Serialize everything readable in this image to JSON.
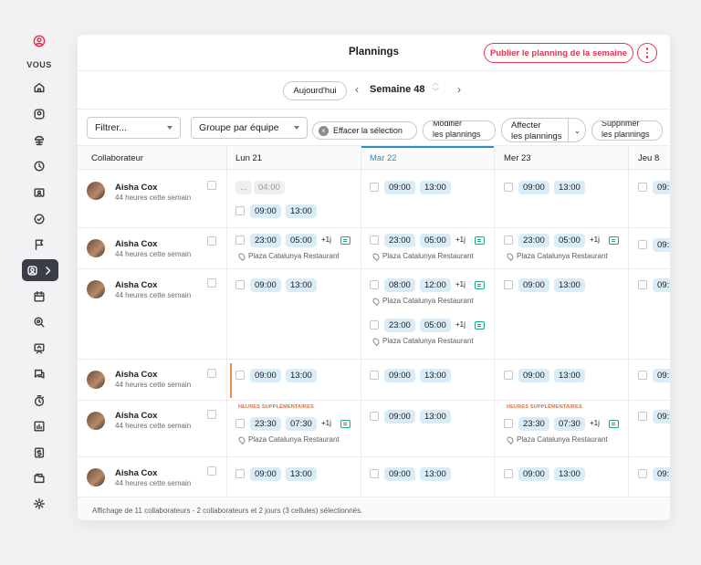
{
  "sidebar": {
    "vous_label": "VOUS",
    "items": [
      "home-icon",
      "smiley-icon",
      "beach-umbrella-icon",
      "clock-icon",
      "id-card-icon",
      "check-circle-icon",
      "flag-icon",
      "users-active-icon",
      "calendar-icon",
      "search-dollar-icon",
      "presentation-icon",
      "chat-icon",
      "stopwatch-icon",
      "chart-icon",
      "dollar-doc-icon",
      "folder-icon",
      "gear-icon"
    ]
  },
  "header": {
    "title": "Plannings",
    "publish_label": "Publier le planning de la semaine"
  },
  "week": {
    "today_label": "Aujourd'hui",
    "label": "Semaine 48"
  },
  "filters": {
    "filter_label": "Filtrer...",
    "group_label": "Groupe par équipe",
    "clear_label": "Effacer la sélection",
    "modify_label_1": "Modifier",
    "modify_label_2": "les plannings",
    "assign_label_1": "Affecter",
    "assign_label_2": "les plannings",
    "delete_label_1": "Supprimer",
    "delete_label_2": "les plannings"
  },
  "columns": [
    "Collaborateur",
    "Lun 21",
    "Mar 22",
    "Mer 23",
    "Jeu 8"
  ],
  "employees": [
    {
      "name": "Aisha Cox",
      "hours": "44 heures cette semain"
    },
    {
      "name": "Aisha Cox",
      "hours": "44 heures cette semain"
    },
    {
      "name": "Aisha Cox",
      "hours": "44 heures cette semain"
    },
    {
      "name": "Aisha Cox",
      "hours": "44 heures cette semain"
    },
    {
      "name": "Aisha Cox",
      "hours": "44 heures cette semain"
    },
    {
      "name": "Aisha Cox",
      "hours": "44 heures cette semain"
    }
  ],
  "shifts": {
    "t0900": "09:00",
    "t1300": "13:00",
    "t0400": "04:00",
    "t2300": "23:00",
    "t0500": "05:00",
    "t0800": "08:00",
    "t1200": "12:00",
    "t2330": "23:30",
    "t0730": "07:30",
    "t09trunc": "09:",
    "plus1": "+1j",
    "ellipsis": "...",
    "location": "Plaza Catalunya Restaurant",
    "overtime": "HEURES SUPPLÉMENTAIRES"
  },
  "footer": "Affichage de 11 collaborateurs - 2 collaborateurs et 2 jours (3 cellules) sélectionnés.",
  "colors": {
    "accent_red": "#e0344f",
    "accent_blue": "#2b8fc4",
    "shift_bg": "#d9ecf8",
    "overtime": "#e06b3a",
    "message_green": "#14a88a"
  }
}
